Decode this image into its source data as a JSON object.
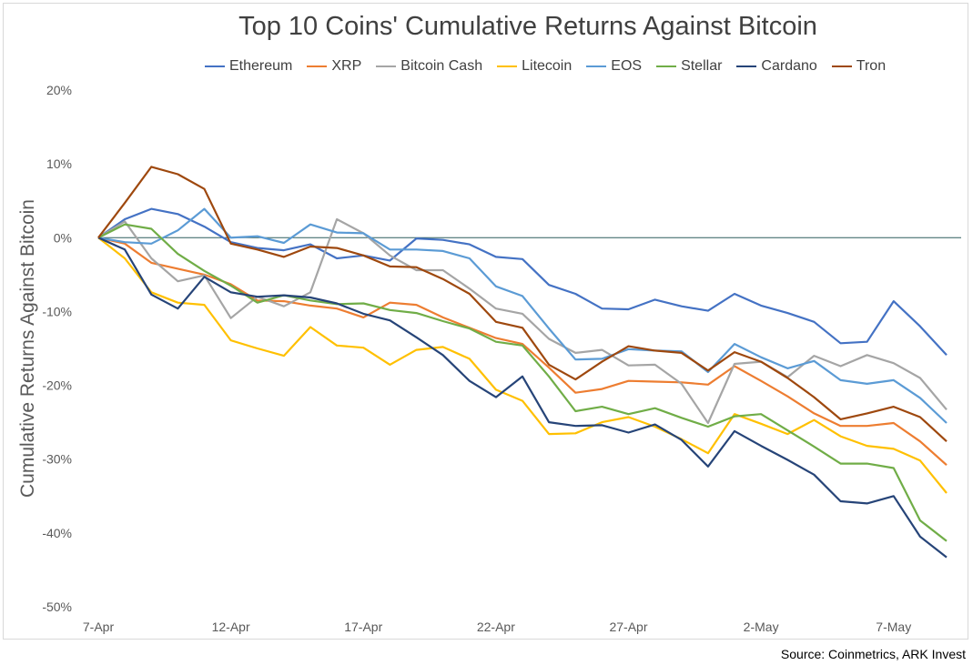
{
  "chart_data": {
    "type": "line",
    "title": "Top 10 Coins' Cumulative Returns Against Bitcoin",
    "ylabel": "Cumulative Returns Against Bitcoin",
    "xlabel": "",
    "ylim": [
      -50,
      20
    ],
    "yticks": [
      20,
      10,
      0,
      -10,
      -20,
      -30,
      -40,
      -50
    ],
    "ytick_labels": [
      "20%",
      "10%",
      "0%",
      "-10%",
      "-20%",
      "-30%",
      "-40%",
      "-50%"
    ],
    "x_range": [
      0,
      32
    ],
    "xticks": [
      0,
      5,
      10,
      15,
      20,
      25,
      30
    ],
    "xtick_labels": [
      "7-Apr",
      "12-Apr",
      "17-Apr",
      "22-Apr",
      "27-Apr",
      "2-May",
      "7-May"
    ],
    "grid": false,
    "zero_line": true,
    "legend_position": "top",
    "x": [
      0,
      1,
      2,
      3,
      4,
      5,
      6,
      7,
      8,
      9,
      10,
      11,
      12,
      13,
      14,
      15,
      16,
      17,
      18,
      19,
      20,
      21,
      22,
      23,
      24,
      25,
      26,
      27,
      28,
      29,
      30,
      31,
      32
    ],
    "series": [
      {
        "name": "Ethereum",
        "color": "#4472c4",
        "values": [
          0,
          2.5,
          3.9,
          3.2,
          1.5,
          -0.6,
          -1.4,
          -1.7,
          -0.9,
          -2.8,
          -2.4,
          -3.1,
          -0.1,
          -0.3,
          -0.9,
          -2.6,
          -2.9,
          -6.4,
          -7.6,
          -9.6,
          -9.7,
          -8.4,
          -9.3,
          -9.9,
          -7.6,
          -9.2,
          -10.2,
          -11.4,
          -14.3,
          -14.1,
          -8.6,
          -12,
          -15.9
        ]
      },
      {
        "name": "XRP",
        "color": "#ed7d31",
        "values": [
          0,
          -0.8,
          -3.4,
          -4.2,
          -5,
          -6.3,
          -8.5,
          -8.6,
          -9.2,
          -9.6,
          -10.8,
          -8.8,
          -9.1,
          -10.8,
          -12.2,
          -13.6,
          -14.4,
          -17.6,
          -21,
          -20.5,
          -19.4,
          -19.5,
          -19.6,
          -19.9,
          -17.4,
          -19.4,
          -21.5,
          -23.8,
          -25.5,
          -25.5,
          -25.1,
          -27.6,
          -30.8
        ]
      },
      {
        "name": "Bitcoin Cash",
        "color": "#a5a5a5",
        "values": [
          0,
          2.2,
          -2.8,
          -5.9,
          -5.1,
          -10.9,
          -8,
          -9.3,
          -7.4,
          2.5,
          0.6,
          -2.4,
          -4.4,
          -4.4,
          -6.9,
          -9.6,
          -10.3,
          -13.7,
          -15.6,
          -15.2,
          -17.3,
          -17.2,
          -19.8,
          -25.1,
          -17.1,
          -16.8,
          -18.9,
          -16,
          -17.4,
          -15.9,
          -17,
          -19,
          -23.3
        ]
      },
      {
        "name": "Litecoin",
        "color": "#ffc000",
        "values": [
          0,
          -2.8,
          -7.4,
          -8.8,
          -9.1,
          -13.9,
          -15,
          -16,
          -12.1,
          -14.6,
          -14.9,
          -17.2,
          -15.2,
          -14.8,
          -16.4,
          -20.6,
          -22.1,
          -26.6,
          -26.5,
          -25,
          -24.3,
          -25.6,
          -27.3,
          -29.2,
          -23.9,
          -25.2,
          -26.6,
          -24.7,
          -26.9,
          -28.2,
          -28.6,
          -30.2,
          -34.6
        ]
      },
      {
        "name": "EOS",
        "color": "#5b9bd5",
        "values": [
          0,
          -0.6,
          -0.8,
          1,
          3.9,
          0,
          0.2,
          -0.7,
          1.8,
          0.7,
          0.6,
          -1.6,
          -1.6,
          -1.8,
          -2.8,
          -6.6,
          -7.9,
          -12.3,
          -16.5,
          -16.4,
          -15.1,
          -15.3,
          -15.4,
          -18.2,
          -14.4,
          -16.2,
          -17.7,
          -16.7,
          -19.3,
          -19.8,
          -19.3,
          -21.7,
          -25.1
        ]
      },
      {
        "name": "Stellar",
        "color": "#70ad47",
        "values": [
          0,
          1.8,
          1.2,
          -2.2,
          -4.5,
          -6.5,
          -8.8,
          -7.8,
          -8.5,
          -9,
          -8.9,
          -9.8,
          -10.2,
          -11.3,
          -12.3,
          -14.1,
          -14.6,
          -18.8,
          -23.5,
          -22.9,
          -23.9,
          -23.1,
          -24.4,
          -25.6,
          -24.2,
          -23.9,
          -26.1,
          -28.3,
          -30.6,
          -30.6,
          -31.2,
          -38.3,
          -41.1
        ]
      },
      {
        "name": "Cardano",
        "color": "#264478",
        "values": [
          0,
          -1.6,
          -7.7,
          -9.6,
          -5.3,
          -7.4,
          -8,
          -7.8,
          -8.1,
          -8.9,
          -10.3,
          -11.2,
          -13.5,
          -15.9,
          -19.4,
          -21.6,
          -18.8,
          -25,
          -25.5,
          -25.4,
          -26.4,
          -25.3,
          -27.4,
          -31,
          -26.2,
          -28.2,
          -30.1,
          -32.1,
          -35.7,
          -36,
          -35,
          -40.5,
          -43.3
        ]
      },
      {
        "name": "Tron",
        "color": "#9e480e",
        "values": [
          0,
          4.7,
          9.6,
          8.6,
          6.6,
          -0.8,
          -1.6,
          -2.6,
          -1.2,
          -1.4,
          -2.4,
          -3.9,
          -4,
          -5.6,
          -7.6,
          -11.4,
          -12.2,
          -17.2,
          -19.2,
          -16.8,
          -14.7,
          -15.3,
          -15.6,
          -18,
          -15.5,
          -16.8,
          -19,
          -21.6,
          -24.6,
          -23.8,
          -22.9,
          -24.3,
          -27.6
        ]
      }
    ]
  },
  "source": "Source: Coinmetrics, ARK Invest"
}
